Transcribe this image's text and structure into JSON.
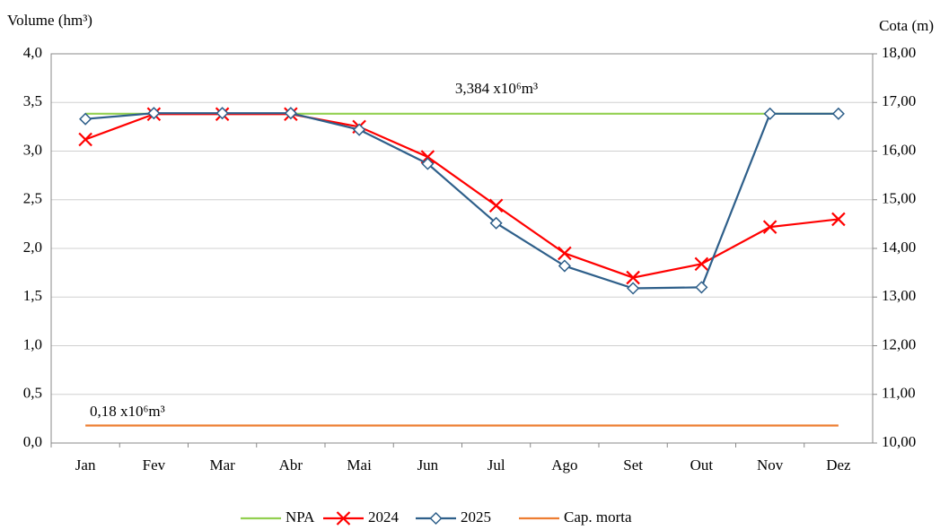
{
  "chart_data": {
    "type": "line",
    "y_label": "Volume (hm³)",
    "y2_label": "Cota (m)",
    "categories": [
      "Jan",
      "Fev",
      "Mar",
      "Abr",
      "Mai",
      "Jun",
      "Jul",
      "Ago",
      "Set",
      "Out",
      "Nov",
      "Dez"
    ],
    "series": [
      {
        "name": "NPA",
        "color": "#92d050",
        "marker": null,
        "values": [
          3.384,
          3.384,
          3.384,
          3.384,
          3.384,
          3.384,
          3.384,
          3.384,
          3.384,
          3.384,
          3.384,
          3.384
        ]
      },
      {
        "name": "2024",
        "color": "#ff0000",
        "marker": "x",
        "values": [
          3.12,
          3.38,
          3.38,
          3.38,
          3.25,
          2.94,
          2.44,
          1.95,
          1.7,
          1.84,
          2.22,
          2.3
        ]
      },
      {
        "name": "2025",
        "color": "#2e5f8a",
        "marker": "diamond",
        "values": [
          3.33,
          3.39,
          3.39,
          3.39,
          3.22,
          2.87,
          2.26,
          1.82,
          1.59,
          1.6,
          3.384,
          3.384
        ]
      },
      {
        "name": "Cap. morta",
        "color": "#ed7d31",
        "marker": null,
        "values": [
          0.18,
          0.18,
          0.18,
          0.18,
          0.18,
          0.18,
          0.18,
          0.18,
          0.18,
          0.18,
          0.18,
          0.18
        ]
      }
    ],
    "annotations": [
      "3,384 x10⁶m³",
      "0,18 x10⁶m³"
    ],
    "ylim": [
      0,
      4
    ],
    "yticks": [
      {
        "value": 0,
        "label": "0,0"
      },
      {
        "value": 0.5,
        "label": "0,5"
      },
      {
        "value": 1,
        "label": "1,0"
      },
      {
        "value": 1.5,
        "label": "1,5"
      },
      {
        "value": 2,
        "label": "2,0"
      },
      {
        "value": 2.5,
        "label": "2,5"
      },
      {
        "value": 3,
        "label": "3,0"
      },
      {
        "value": 3.5,
        "label": "3,5"
      },
      {
        "value": 4,
        "label": "4,0"
      }
    ],
    "y2lim": [
      10,
      18
    ],
    "y2ticks": [
      {
        "value": 10,
        "label": "10,00"
      },
      {
        "value": 11,
        "label": "11,00"
      },
      {
        "value": 12,
        "label": "12,00"
      },
      {
        "value": 13,
        "label": "13,00"
      },
      {
        "value": 14,
        "label": "14,00"
      },
      {
        "value": 15,
        "label": "15,00"
      },
      {
        "value": 16,
        "label": "16,00"
      },
      {
        "value": 17,
        "label": "17,00"
      },
      {
        "value": 18,
        "label": "18,00"
      }
    ],
    "grid": true,
    "legend": "bottom"
  }
}
